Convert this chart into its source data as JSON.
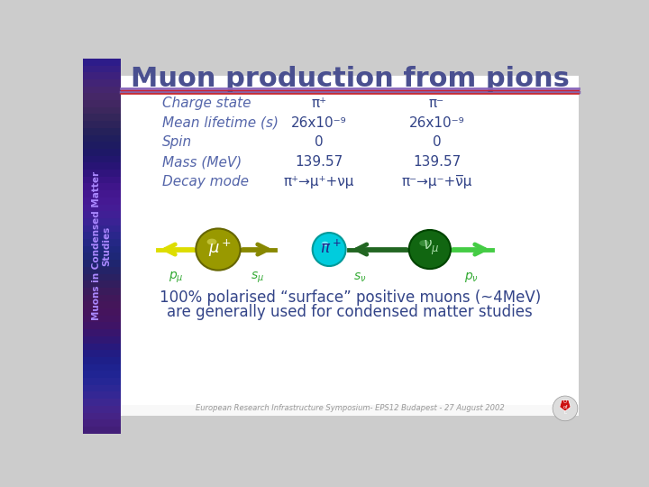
{
  "title": "Muon production from pions",
  "title_color": "#4a5090",
  "title_fontsize": 22,
  "sidebar_color_top": "#4433aa",
  "sidebar_color_mid": "#6655bb",
  "sidebar_text": "Muons in Condensed Matter\nStudies",
  "header_line1_color": "#6655aa",
  "header_line2_color": "#cc2222",
  "table_label_color": "#5566aa",
  "table_data_color": "#334488",
  "rows": [
    "Charge state",
    "Mean lifetime (s)",
    "Spin",
    "Mass (MeV)",
    "Decay mode"
  ],
  "col_pi_plus": [
    "π⁺",
    "26x10⁻⁹",
    "0",
    "139.57",
    "π⁺→μ⁺+νμ"
  ],
  "col_pi_minus": [
    "π⁻",
    "26x10⁻⁹",
    "0",
    "139.57",
    "π⁻→μ⁻+ν̅μ"
  ],
  "footer_text": "European Research Infrastructure Symposium- EPS12 Budapest - 27 August 2002",
  "polarised_line1": "100% polarised “surface” positive muons (~4MeV)",
  "polarised_line2": "are generally used for condensed matter studies",
  "polarised_color": "#334488",
  "bg_main": "#ffffff",
  "bg_outer": "#cccccc",
  "footer_bg": "#ffffff",
  "footer_line_color": "#8866aa",
  "footer_line2_color": "#cc2222",
  "muon_color": "#999900",
  "muon_highlight": "#cccc44",
  "muon_edge": "#666600",
  "pion_color": "#00ccdd",
  "pion_highlight": "#88eeff",
  "pion_edge": "#009999",
  "nu_color": "#116611",
  "nu_highlight": "#449944",
  "nu_edge": "#004400",
  "arrow_yellow_left": "#dddd00",
  "arrow_olive_right": "#888800",
  "arrow_green_left": "#226622",
  "arrow_green_right": "#44cc44",
  "label_color": "#33aa33"
}
